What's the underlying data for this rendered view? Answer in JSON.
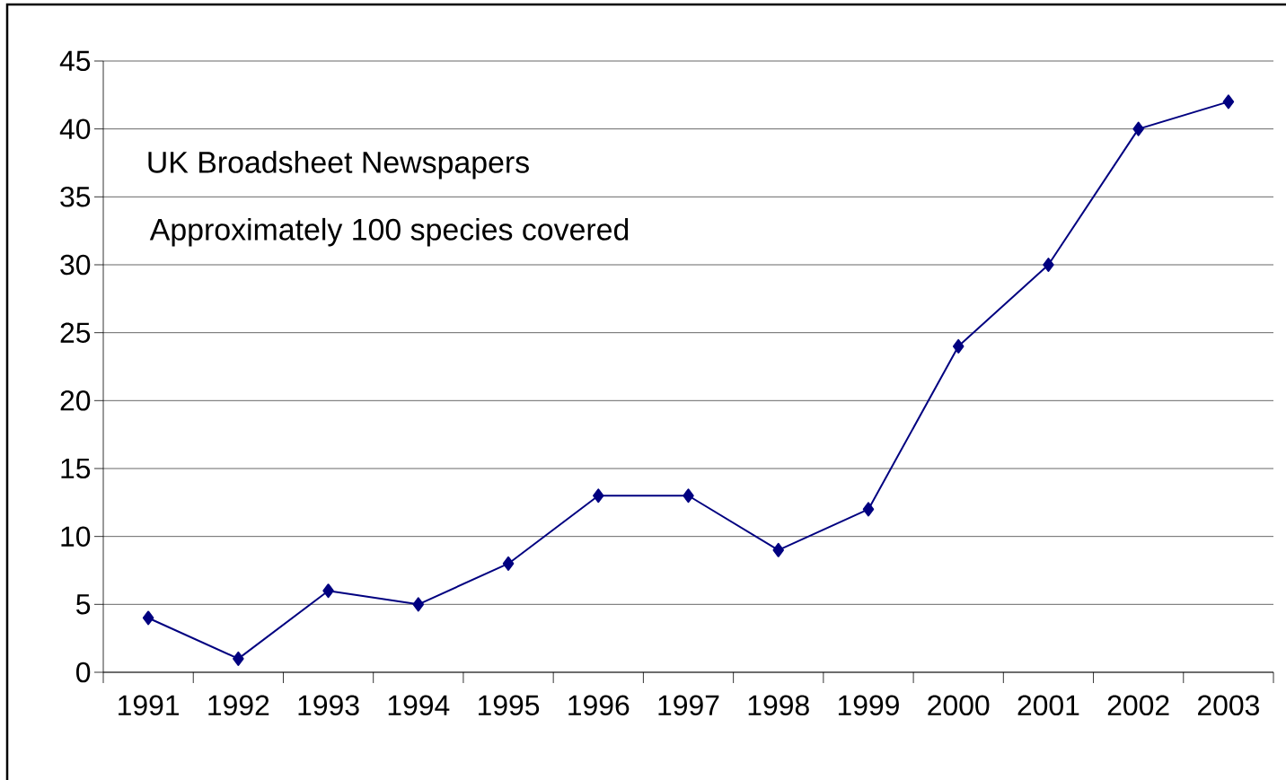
{
  "chart_data": {
    "type": "line",
    "categories": [
      "1991",
      "1992",
      "1993",
      "1994",
      "1995",
      "1996",
      "1997",
      "1998",
      "1999",
      "2000",
      "2001",
      "2002",
      "2003"
    ],
    "values": [
      4,
      1,
      6,
      5,
      8,
      13,
      13,
      9,
      12,
      24,
      30,
      40,
      42
    ],
    "color": "#000080",
    "marker": "diamond",
    "line_style": "solid",
    "ylim": [
      0,
      45
    ],
    "yticks": [
      0,
      5,
      10,
      15,
      20,
      25,
      30,
      35,
      40,
      45
    ],
    "grid": "y",
    "annotations": [
      "UK Broadsheet Newspapers",
      "Approximately 100 species covered"
    ]
  }
}
